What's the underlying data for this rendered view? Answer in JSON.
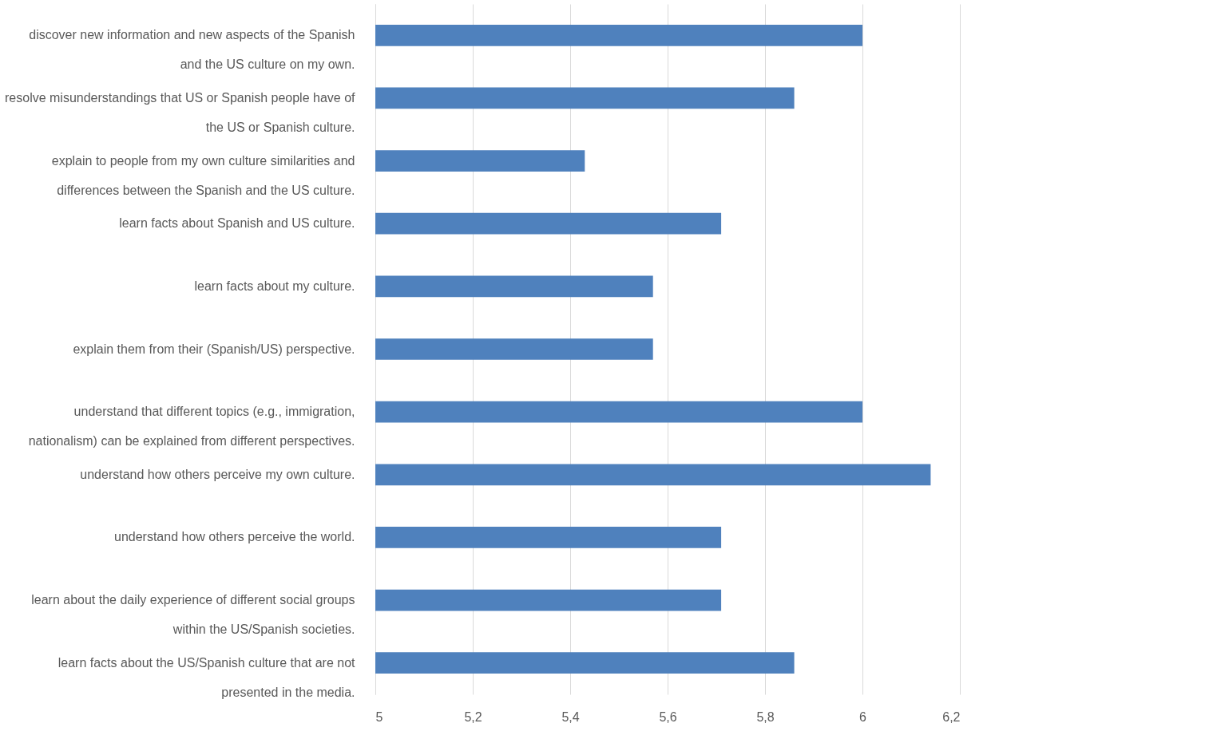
{
  "chart_data": {
    "type": "bar",
    "orientation": "horizontal",
    "categories": [
      "discover new information and new aspects of the Spanish\nand the US culture on my own.",
      "resolve misunderstandings that US or Spanish people have of\nthe US or Spanish culture.",
      "explain to people from my own culture similarities and\ndifferences between the Spanish and the US culture.",
      "learn facts about Spanish and US culture.",
      "learn facts about my culture.",
      "explain them from their (Spanish/US) perspective.",
      "understand that different topics (e.g., immigration,\nnationalism) can be explained from different perspectives.",
      "understand how others perceive my own culture.",
      "understand how others perceive the world.",
      "learn about the daily experience of different social groups\nwithin the US/Spanish societies.",
      "learn facts about the US/Spanish culture that are not\npresented in the media."
    ],
    "values": [
      6.0,
      5.86,
      5.43,
      5.71,
      5.57,
      5.57,
      6.0,
      6.14,
      5.71,
      5.71,
      5.86
    ],
    "color": "#4f81bd",
    "xlim": [
      5,
      6.2
    ],
    "xticks": [
      5,
      {
        "value": 5.2,
        "label": "5,2"
      },
      {
        "value": 5.4,
        "label": "5,4"
      },
      {
        "value": 5.6,
        "label": "5,6"
      },
      {
        "value": 5.8,
        "label": "5,8"
      },
      6,
      {
        "value": 6.2,
        "label": "6,2"
      }
    ],
    "grid": "x"
  }
}
